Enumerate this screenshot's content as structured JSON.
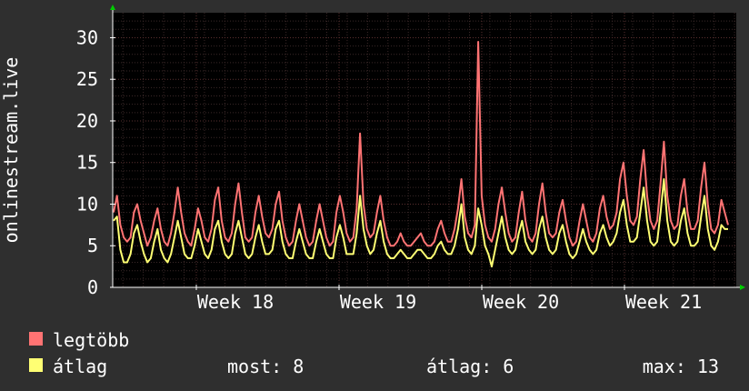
{
  "chart_data": {
    "type": "line",
    "ylabel": "onlinestream.live",
    "ylim": [
      0,
      33
    ],
    "yticks": [
      0,
      5,
      10,
      15,
      20,
      25,
      30
    ],
    "x_ticks": [
      "Week 18",
      "Week 19",
      "Week 20",
      "Week 21"
    ],
    "grid": true,
    "colors": {
      "background": "#2f2f2f",
      "plot": "#000000",
      "grid": "#5a3030",
      "axis": "#ffffff",
      "arrow": "#00cc00"
    },
    "series": [
      {
        "name": "legtöbb",
        "color": "#ff7373",
        "values": [
          9,
          11,
          7.5,
          6,
          5.5,
          6,
          9,
          10,
          8,
          6.5,
          5,
          6,
          8,
          9.5,
          7,
          5.5,
          5,
          6.5,
          9,
          12,
          9,
          6.5,
          5.5,
          5,
          7,
          9.5,
          8,
          6,
          5.5,
          7,
          10.5,
          12,
          8,
          6,
          5.5,
          6.5,
          10,
          12.5,
          9,
          6,
          5.5,
          6,
          9,
          11,
          8.5,
          6.5,
          6,
          7,
          10,
          11.5,
          8,
          6,
          5,
          5.5,
          8,
          10,
          8,
          6,
          5,
          5.5,
          8,
          10,
          8,
          6,
          5,
          5.5,
          9,
          11,
          9,
          6.5,
          5.5,
          6,
          9.5,
          18.5,
          10,
          7,
          6,
          6.5,
          9,
          11,
          8,
          6,
          5,
          5,
          5.5,
          6.5,
          5.5,
          5,
          5,
          5.5,
          6,
          6.5,
          5.5,
          5,
          5,
          5.5,
          7,
          8,
          6.5,
          5.5,
          5.5,
          7,
          9.5,
          13,
          8.5,
          6.5,
          6,
          7.5,
          29.5,
          11,
          7.5,
          6,
          5.5,
          7,
          10,
          12,
          9,
          6.5,
          5.5,
          6,
          9,
          11.5,
          8,
          6,
          5.5,
          6.5,
          10,
          12.5,
          9,
          6.5,
          6,
          6.5,
          9,
          10.5,
          8,
          6,
          5,
          5.5,
          8,
          10,
          8,
          6,
          5.5,
          6.5,
          9.5,
          11,
          8.5,
          7,
          7.5,
          9,
          13,
          15,
          11,
          8,
          7.5,
          8.5,
          13,
          16.5,
          11,
          8,
          7,
          8,
          12.5,
          17.5,
          11,
          8,
          7,
          7.5,
          11,
          13,
          9,
          7,
          7,
          8,
          12,
          15,
          10,
          7,
          6.5,
          7.5,
          10.5,
          9,
          7.5
        ]
      },
      {
        "name": "átlag",
        "color": "#ffff73",
        "values": [
          8,
          8.5,
          4.5,
          3,
          3,
          4,
          6.5,
          7.5,
          5.5,
          4,
          3,
          3.5,
          5.5,
          7,
          4.5,
          3.5,
          3,
          4,
          6,
          8,
          6,
          4,
          3.5,
          3.5,
          5,
          7,
          5.5,
          4,
          3.5,
          4.5,
          7,
          8,
          5.5,
          4,
          3.5,
          4,
          6.5,
          8,
          6,
          4,
          3.5,
          4,
          6,
          7.5,
          5.5,
          4,
          4,
          4.5,
          7,
          8,
          5.5,
          4,
          3.5,
          3.5,
          5.5,
          7,
          5.5,
          4,
          3.5,
          3.5,
          5.5,
          7,
          5.5,
          4,
          3.5,
          3.5,
          6,
          7.5,
          6,
          4,
          4,
          4,
          6.5,
          11,
          7,
          5,
          4,
          4.5,
          6.5,
          8,
          5.5,
          4,
          3.5,
          3.5,
          4,
          4.5,
          4,
          3.5,
          3.5,
          4,
          4.5,
          4.5,
          4,
          3.5,
          3.5,
          4,
          5,
          5.5,
          4.5,
          4,
          4,
          5,
          7,
          10,
          6,
          4.5,
          4,
          5,
          9.5,
          7.5,
          5,
          4,
          2.5,
          4.5,
          6.5,
          8.5,
          6,
          4.5,
          4,
          4.5,
          6.5,
          8,
          5.5,
          4.5,
          4,
          4.5,
          7,
          8.5,
          6,
          4.5,
          4,
          4.5,
          6.5,
          7.5,
          5.5,
          4,
          3.5,
          4,
          5.5,
          7,
          5.5,
          4.5,
          4,
          4.5,
          6.5,
          7.5,
          6,
          5,
          5.5,
          6.5,
          9,
          10.5,
          7.5,
          5.5,
          5.5,
          6,
          9,
          12,
          8,
          5.5,
          5,
          5.5,
          9,
          13,
          8,
          5.5,
          5,
          5.5,
          8,
          9.5,
          6.5,
          5,
          5,
          5.5,
          8.5,
          11,
          7,
          5,
          4.5,
          5.5,
          7.5,
          7,
          7
        ]
      }
    ]
  },
  "legend": {
    "max_label": "legtöbb",
    "avg_label": "átlag",
    "now_text": "most: 8",
    "avg_text": "átlag: 6",
    "max_text": "max: 13"
  }
}
